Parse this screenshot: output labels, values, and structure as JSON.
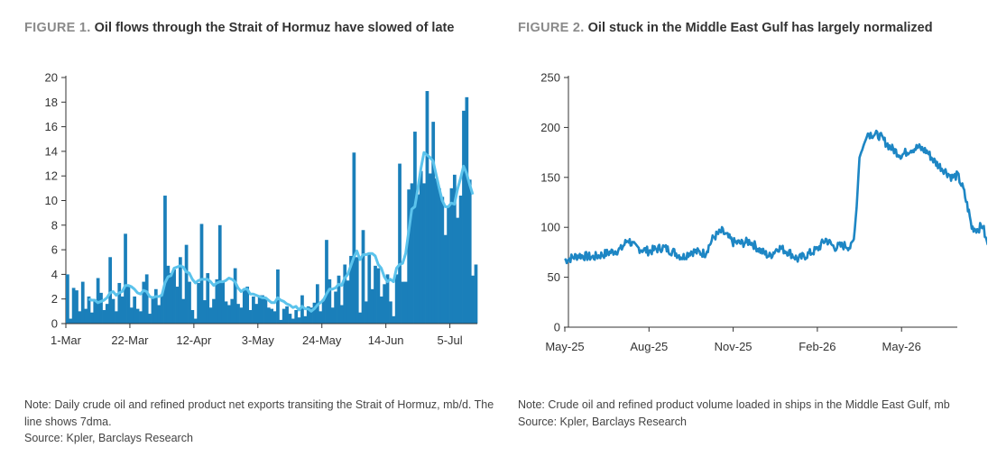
{
  "figure1": {
    "label": "FIGURE 1.",
    "title": "Oil flows through the Strait of Hormuz have slowed of late",
    "note": "Note: Daily crude oil and refined product net exports transiting the Strait of Hormuz, mb/d. The line shows 7dma.",
    "source": "Source: Kpler, Barclays Research"
  },
  "figure2": {
    "label": "FIGURE 2.",
    "title": "Oil stuck in the Middle East Gulf has largely normalized",
    "note": "Note: Crude oil and refined product volume loaded in ships in the Middle East Gulf, mb",
    "source": "Source: Kpler, Barclays Research"
  },
  "colors": {
    "bar": "#1a7fba",
    "line": "#5bc3ec",
    "line2": "#1d86c4",
    "axis": "#333333"
  },
  "chart_data": [
    {
      "type": "bar",
      "title": "Oil flows through the Strait of Hormuz have slowed of late",
      "ylim": [
        0,
        20
      ],
      "yticks": [
        0,
        2,
        4,
        6,
        8,
        10,
        12,
        14,
        16,
        18,
        20
      ],
      "xtick_labels": [
        "1-Mar",
        "22-Mar",
        "12-Apr",
        "3-May",
        "24-May",
        "14-Jun",
        "5-Jul"
      ],
      "xtick_day_index": [
        0,
        21,
        42,
        63,
        84,
        105,
        126
      ],
      "start_date": "1-Mar",
      "series": [
        {
          "values": [
            4.0,
            0.4,
            2.9,
            2.7,
            1.0,
            3.4,
            1.2,
            2.2,
            0.9,
            1.8,
            3.7,
            2.5,
            1.1,
            1.6,
            5.4,
            2.0,
            1.0,
            3.3,
            2.2,
            7.3,
            3.1,
            1.3,
            2.2,
            1.2,
            1.0,
            3.4,
            4.0,
            0.8,
            2.2,
            2.8,
            1.5,
            2.4,
            10.4,
            4.7,
            4.1,
            4.4,
            3.0,
            5.4,
            2.0,
            6.4,
            3.4,
            1.1,
            0.4,
            3.3,
            8.1,
            1.9,
            4.1,
            1.3,
            2.0,
            3.6,
            8.0,
            3.4,
            1.8,
            1.5,
            2.0,
            4.5,
            1.6,
            1.3,
            2.8,
            3.0,
            1.1,
            2.2,
            1.6,
            2.3,
            2.3,
            2.0,
            1.3,
            1.2,
            1.0,
            4.4,
            0.3,
            1.2,
            1.4,
            0.8,
            0.4,
            1.1,
            0.5,
            2.3,
            0.6,
            1.4,
            1.3,
            1.7,
            3.2,
            1.0,
            2.0,
            6.8,
            3.6,
            1.3,
            2.6,
            3.9,
            1.5,
            4.8,
            3.5,
            5.5,
            13.9,
            5.4,
            0.9,
            7.6,
            1.8,
            5.6,
            2.8,
            4.7,
            4.5,
            2.2,
            3.2,
            4.0,
            1.8,
            0.6,
            4.0,
            13.0,
            3.4,
            3.4,
            10.9,
            11.4,
            15.6,
            10.5,
            12.4,
            11.4,
            18.9,
            12.2,
            16.4,
            11.8,
            11.0,
            10.3,
            7.2,
            9.5,
            11.0,
            12.1,
            8.6,
            10.4,
            17.3,
            18.4,
            11.7,
            3.9,
            4.8
          ],
          "ma7": [
            null,
            null,
            null,
            null,
            null,
            null,
            null,
            2.0,
            1.9,
            1.9,
            1.7,
            1.8,
            1.9,
            2.1,
            2.5,
            2.6,
            2.3,
            2.5,
            2.6,
            3.1,
            3.1,
            3.0,
            2.8,
            2.5,
            2.4,
            2.7,
            2.6,
            2.2,
            2.1,
            2.2,
            2.2,
            2.3,
            3.3,
            3.8,
            3.9,
            4.5,
            4.6,
            4.7,
            4.6,
            4.2,
            4.1,
            3.6,
            3.3,
            3.5,
            3.6,
            3.6,
            3.6,
            3.4,
            3.1,
            3.3,
            3.4,
            3.4,
            3.5,
            3.7,
            3.6,
            3.4,
            2.9,
            2.6,
            2.8,
            2.8,
            2.4,
            2.4,
            2.3,
            2.2,
            2.1,
            2.1,
            1.9,
            1.7,
            1.7,
            2.1,
            1.9,
            1.8,
            1.6,
            1.5,
            1.3,
            1.4,
            1.1,
            1.4,
            1.2,
            1.2,
            1.0,
            1.2,
            1.5,
            1.7,
            1.9,
            2.4,
            2.8,
            2.8,
            2.9,
            3.2,
            3.1,
            3.7,
            4.0,
            4.7,
            5.4,
            5.9,
            5.2,
            5.6,
            5.6,
            5.7,
            5.7,
            5.5,
            4.8,
            4.5,
            3.8,
            3.4,
            3.6,
            3.4,
            4.5,
            4.8,
            4.9,
            5.7,
            7.5,
            9.3,
            9.5,
            11.0,
            12.6,
            13.9,
            13.7,
            13.5,
            13.2,
            12.1,
            11.0,
            10.0,
            9.5,
            9.5,
            9.8,
            9.7,
            10.9,
            11.8,
            12.8,
            12.2,
            11.3,
            10.5
          ]
        }
      ],
      "xlabel": "",
      "ylabel": "",
      "grid": false
    },
    {
      "type": "line",
      "title": "Oil stuck in the Middle East Gulf has largely normalized",
      "ylim": [
        0,
        250
      ],
      "yticks": [
        0,
        50,
        100,
        150,
        200,
        250
      ],
      "xtick_labels": [
        "May-25",
        "Aug-25",
        "Nov-25",
        "Feb-26",
        "May-26"
      ],
      "xtick_month_index": [
        0,
        3,
        6,
        9,
        12
      ],
      "start_month": "May-25",
      "series": [
        {
          "month_index": [
            0,
            0.5,
            1.0,
            1.5,
            2.0,
            2.25,
            2.5,
            3.0,
            3.5,
            3.9,
            4.2,
            4.5,
            5.0,
            5.3,
            5.6,
            6.0,
            6.3,
            6.6,
            7.0,
            7.3,
            7.6,
            8.0,
            8.3,
            8.6,
            9.0,
            9.3,
            9.6,
            10.0,
            10.2,
            10.3,
            10.4,
            10.5,
            10.8,
            11.2,
            11.6,
            12.0,
            12.3,
            12.6,
            12.9,
            13.2,
            13.5,
            13.8,
            14.0,
            14.2,
            14.4,
            14.5,
            14.7,
            14.9,
            15.0,
            15.1
          ],
          "values": [
            67,
            72,
            70,
            74,
            78,
            88,
            80,
            76,
            80,
            75,
            70,
            76,
            74,
            90,
            96,
            85,
            84,
            86,
            76,
            71,
            80,
            75,
            68,
            72,
            78,
            88,
            80,
            82,
            80,
            88,
            120,
            170,
            194,
            192,
            180,
            172,
            178,
            180,
            176,
            165,
            158,
            150,
            152,
            138,
            115,
            100,
            98,
            102,
            88,
            82
          ]
        }
      ],
      "xlabel": "",
      "ylabel": "",
      "grid": false
    }
  ]
}
